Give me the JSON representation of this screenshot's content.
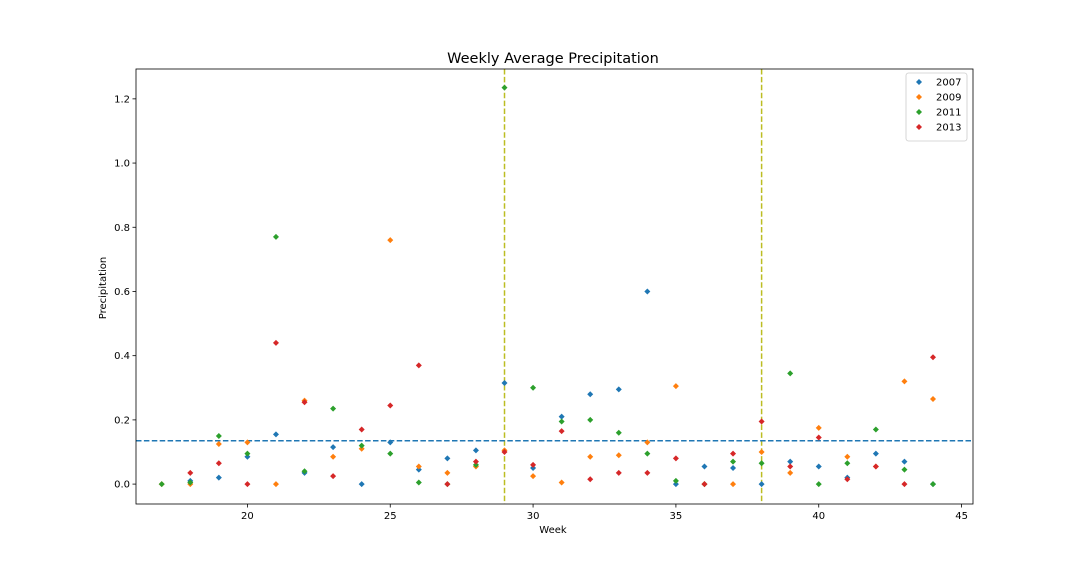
{
  "chart_data": {
    "type": "scatter",
    "title": "Weekly Average Precipitation",
    "xlabel": "Week",
    "ylabel": "Precipitation",
    "xlim": [
      16.1,
      45.4
    ],
    "ylim": [
      -0.062,
      1.293
    ],
    "xticks": [
      20,
      25,
      30,
      35,
      40,
      45
    ],
    "yticks": [
      0.0,
      0.2,
      0.4,
      0.6,
      0.8,
      1.0,
      1.2
    ],
    "grid": false,
    "legend_position": "top-right",
    "hline": {
      "y": 0.135,
      "color": "#1f77b4",
      "style": "dashed"
    },
    "vlines": [
      {
        "x": 29,
        "color": "#bcbd22",
        "style": "dashed"
      },
      {
        "x": 38,
        "color": "#bcbd22",
        "style": "dashed"
      }
    ],
    "series": [
      {
        "name": "2007",
        "color": "#1f77b4",
        "points": [
          [
            18,
            0.01
          ],
          [
            19,
            0.02
          ],
          [
            20,
            0.085
          ],
          [
            21,
            0.155
          ],
          [
            22,
            0.035
          ],
          [
            23,
            0.115
          ],
          [
            24,
            0.0
          ],
          [
            25,
            0.13
          ],
          [
            26,
            0.045
          ],
          [
            27,
            0.08
          ],
          [
            28,
            0.105
          ],
          [
            29,
            0.315
          ],
          [
            30,
            0.05
          ],
          [
            31,
            0.21
          ],
          [
            32,
            0.28
          ],
          [
            33,
            0.295
          ],
          [
            34,
            0.6
          ],
          [
            35,
            0.0
          ],
          [
            36,
            0.055
          ],
          [
            37,
            0.05
          ],
          [
            38,
            0.0
          ],
          [
            39,
            0.07
          ],
          [
            40,
            0.055
          ],
          [
            41,
            0.02
          ],
          [
            42,
            0.095
          ],
          [
            43,
            0.07
          ],
          [
            44,
            0.0
          ]
        ]
      },
      {
        "name": "2009",
        "color": "#ff7f0e",
        "points": [
          [
            17,
            0.0
          ],
          [
            18,
            0.0
          ],
          [
            19,
            0.125
          ],
          [
            20,
            0.13
          ],
          [
            21,
            0.0
          ],
          [
            22,
            0.26
          ],
          [
            23,
            0.085
          ],
          [
            24,
            0.11
          ],
          [
            25,
            0.76
          ],
          [
            26,
            0.055
          ],
          [
            27,
            0.035
          ],
          [
            28,
            0.055
          ],
          [
            29,
            0.105
          ],
          [
            30,
            0.025
          ],
          [
            31,
            0.005
          ],
          [
            32,
            0.085
          ],
          [
            33,
            0.09
          ],
          [
            34,
            0.13
          ],
          [
            35,
            0.305
          ],
          [
            36,
            0.0
          ],
          [
            37,
            0.0
          ],
          [
            38,
            0.1
          ],
          [
            39,
            0.035
          ],
          [
            40,
            0.175
          ],
          [
            41,
            0.085
          ],
          [
            42,
            0.055
          ],
          [
            43,
            0.32
          ],
          [
            44,
            0.265
          ]
        ]
      },
      {
        "name": "2011",
        "color": "#2ca02c",
        "points": [
          [
            17,
            0.0
          ],
          [
            18,
            0.005
          ],
          [
            19,
            0.15
          ],
          [
            20,
            0.095
          ],
          [
            21,
            0.77
          ],
          [
            22,
            0.04
          ],
          [
            23,
            0.235
          ],
          [
            24,
            0.12
          ],
          [
            25,
            0.095
          ],
          [
            26,
            0.005
          ],
          [
            27,
            0.0
          ],
          [
            28,
            0.06
          ],
          [
            29,
            1.235
          ],
          [
            30,
            0.3
          ],
          [
            31,
            0.195
          ],
          [
            32,
            0.2
          ],
          [
            33,
            0.16
          ],
          [
            34,
            0.095
          ],
          [
            35,
            0.01
          ],
          [
            36,
            0.0
          ],
          [
            37,
            0.07
          ],
          [
            38,
            0.065
          ],
          [
            39,
            0.345
          ],
          [
            40,
            0.0
          ],
          [
            41,
            0.065
          ],
          [
            42,
            0.17
          ],
          [
            43,
            0.045
          ],
          [
            44,
            0.0
          ]
        ]
      },
      {
        "name": "2013",
        "color": "#d62728",
        "points": [
          [
            18,
            0.035
          ],
          [
            19,
            0.065
          ],
          [
            20,
            0.0
          ],
          [
            21,
            0.44
          ],
          [
            22,
            0.255
          ],
          [
            23,
            0.025
          ],
          [
            24,
            0.17
          ],
          [
            25,
            0.245
          ],
          [
            26,
            0.37
          ],
          [
            27,
            0.0
          ],
          [
            28,
            0.07
          ],
          [
            29,
            0.1
          ],
          [
            30,
            0.06
          ],
          [
            31,
            0.165
          ],
          [
            32,
            0.015
          ],
          [
            33,
            0.035
          ],
          [
            34,
            0.035
          ],
          [
            35,
            0.08
          ],
          [
            36,
            0.0
          ],
          [
            37,
            0.095
          ],
          [
            38,
            0.195
          ],
          [
            39,
            0.055
          ],
          [
            40,
            0.145
          ],
          [
            41,
            0.015
          ],
          [
            42,
            0.055
          ],
          [
            43,
            0.0
          ],
          [
            44,
            0.395
          ]
        ]
      }
    ]
  }
}
